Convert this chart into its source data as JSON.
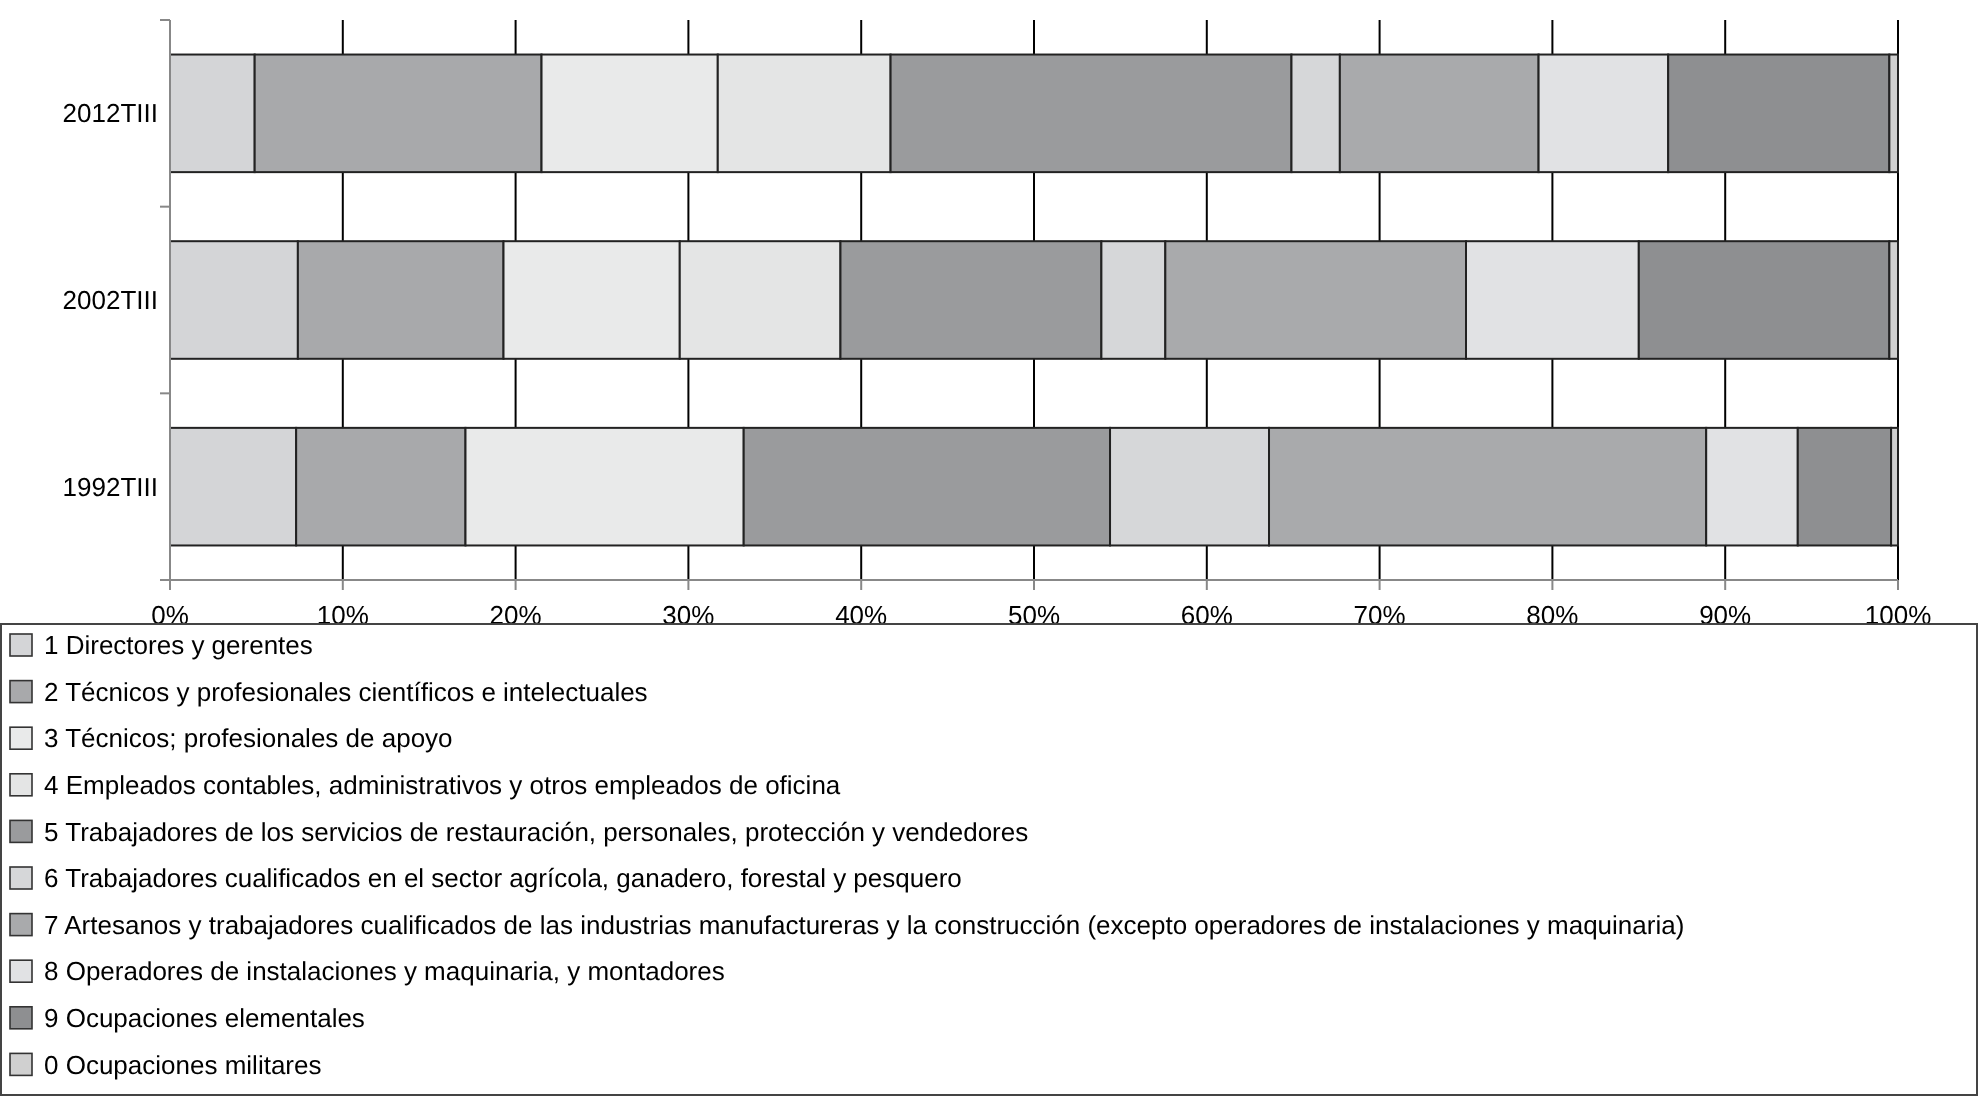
{
  "chart_data": {
    "type": "bar",
    "orientation": "horizontal",
    "stacked": true,
    "categories": [
      "2012TIII",
      "2002TIII",
      "1992TIII"
    ],
    "series": [
      {
        "name": "1 Directores y gerentes",
        "color": "#d4d5d7",
        "values": [
          4.9,
          7.4,
          7.3
        ]
      },
      {
        "name": "2 Técnicos y profesionales científicos e intelectuales",
        "color": "#a8a9ab",
        "values": [
          16.6,
          11.9,
          9.8
        ]
      },
      {
        "name": "3 Técnicos; profesionales de apoyo",
        "color": "#e9eaea",
        "values": [
          10.2,
          10.2,
          16.1
        ]
      },
      {
        "name": "4 Empleados contables, administrativos y otros empleados de oficina",
        "color": "#e4e5e5",
        "values": [
          10.0,
          9.3,
          0
        ]
      },
      {
        "name": "5 Trabajadores de los servicios de restauración, personales, protección y vendedores",
        "color": "#9a9b9d",
        "values": [
          23.2,
          15.1,
          21.2
        ]
      },
      {
        "name": "6 Trabajadores cualificados en el sector agrícola, ganadero, forestal y pesquero",
        "color": "#d6d7d9",
        "values": [
          2.8,
          3.7,
          9.2
        ]
      },
      {
        "name": "7 Artesanos y trabajadores cualificados de las industrias manufactureras y la construcción (excepto operadores de instalaciones y maquinaria)",
        "color": "#a9aaac",
        "values": [
          11.5,
          17.4,
          25.3
        ]
      },
      {
        "name": "8 Operadores de instalaciones y maquinaria, y montadores",
        "color": "#e1e2e4",
        "values": [
          7.5,
          10.0,
          5.3
        ]
      },
      {
        "name": "9 Ocupaciones elementales",
        "color": "#8e8f91",
        "values": [
          12.8,
          14.5,
          5.4
        ]
      },
      {
        "name": "0 Ocupaciones militares",
        "color": "#d0d0d0",
        "values": [
          0.5,
          0.5,
          0.4
        ]
      }
    ],
    "xlim": [
      0,
      100
    ],
    "xticks": [
      {
        "value": 0,
        "label": "0%"
      },
      {
        "value": 10,
        "label": "10%"
      },
      {
        "value": 20,
        "label": "20%"
      },
      {
        "value": 30,
        "label": "30%"
      },
      {
        "value": 40,
        "label": "40%"
      },
      {
        "value": 50,
        "label": "50%"
      },
      {
        "value": 60,
        "label": "60%"
      },
      {
        "value": 70,
        "label": "70%"
      },
      {
        "value": 80,
        "label": "80%"
      },
      {
        "value": 90,
        "label": "90%"
      },
      {
        "value": 100,
        "label": "100%"
      }
    ],
    "grid": "x",
    "legend": "bottom"
  }
}
